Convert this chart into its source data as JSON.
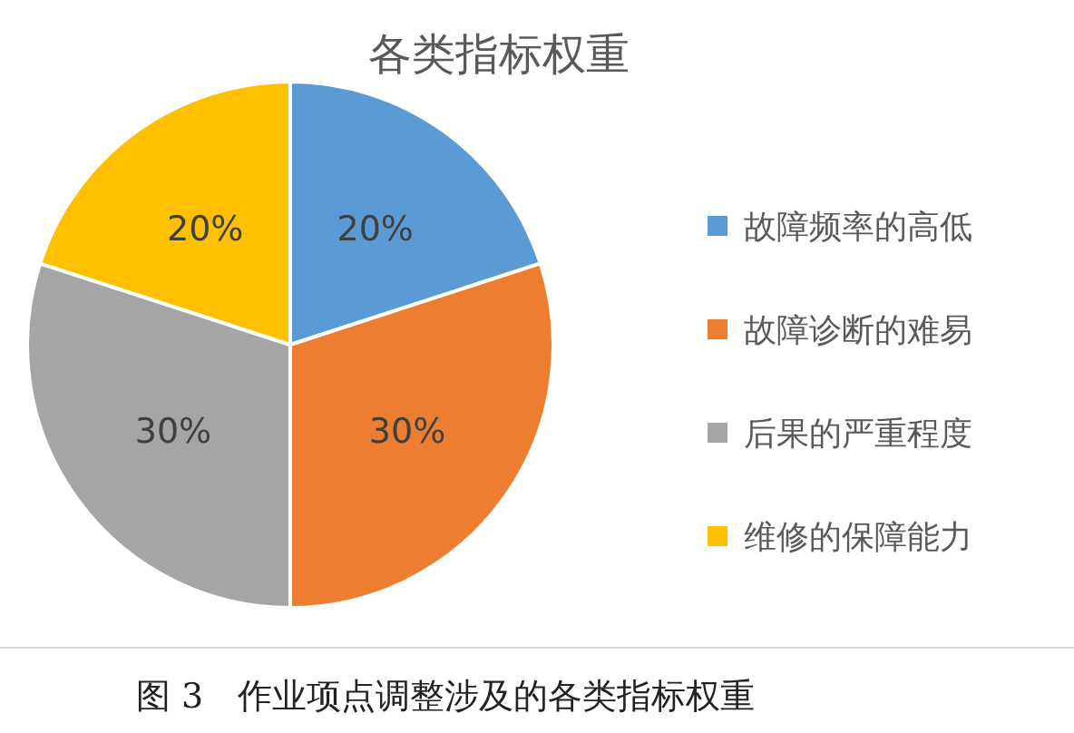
{
  "chart_data": {
    "type": "pie",
    "title": "各类指标权重",
    "categories": [
      "故障频率的高低",
      "故障诊断的难易",
      "后果的严重程度",
      "维修的保障能力"
    ],
    "values": [
      20,
      30,
      30,
      20
    ],
    "colors": [
      "#5b9bd5",
      "#ed7d31",
      "#a5a5a5",
      "#ffc000"
    ],
    "value_labels": [
      "20%",
      "30%",
      "30%",
      "20%"
    ],
    "legend": "right",
    "annotations": [
      "图 3　作业项点调整涉及的各类指标权重"
    ]
  }
}
